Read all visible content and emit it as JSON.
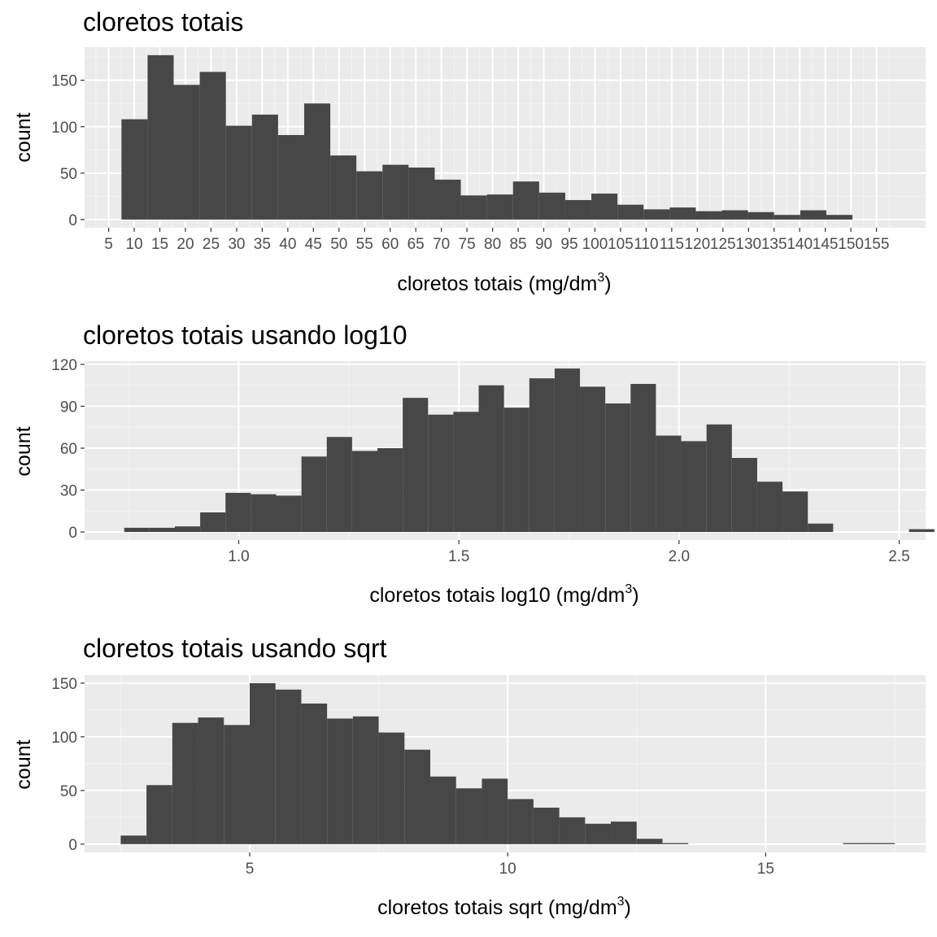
{
  "colors": {
    "panel": "#ebebeb",
    "grid_major": "#ffffff",
    "grid_minor": "#f5f5f5",
    "bar": "#474747",
    "tick_text": "#4d4d4d",
    "text": "#000000"
  },
  "chart_data": [
    {
      "type": "bar",
      "title": "cloretos totais",
      "xlabel": "cloretos totais (mg/dm",
      "xlabel_sup": "3",
      "xlabel_end": ")",
      "ylabel": "count",
      "xlim": [
        0.3,
        164.6
      ],
      "ylim": [
        -8.8,
        185.6
      ],
      "xticks": [
        5,
        10,
        15,
        20,
        25,
        30,
        35,
        40,
        45,
        50,
        55,
        60,
        65,
        70,
        75,
        80,
        85,
        90,
        95,
        100,
        105,
        110,
        115,
        120,
        125,
        130,
        135,
        140,
        145,
        150,
        155
      ],
      "yticks": [
        0,
        50,
        100,
        150
      ],
      "bins_start": 7.5,
      "bin_width": 5.1,
      "values": [
        108,
        177,
        145,
        159,
        101,
        113,
        91,
        125,
        69,
        52,
        59,
        56,
        43,
        26,
        27,
        41,
        29,
        21,
        28,
        16,
        11,
        13,
        9,
        10,
        8,
        5,
        10,
        5
      ]
    },
    {
      "type": "bar",
      "title": "cloretos totais usando log10",
      "xlabel": "cloretos totais log10 (mg/dm",
      "xlabel_sup": "3",
      "xlabel_end": ")",
      "ylabel": "count",
      "xlim": [
        0.65,
        2.56
      ],
      "ylim": [
        -5.8,
        122.3
      ],
      "xticks": [
        1.0,
        1.5,
        2.0,
        2.5
      ],
      "xtick_labels": [
        "1.0",
        "1.5",
        "2.0",
        "2.5"
      ],
      "yticks": [
        0,
        30,
        60,
        90,
        120
      ],
      "bins_start": 0.74,
      "bin_width": 0.0575,
      "values": [
        3,
        3,
        4,
        14,
        28,
        27,
        26,
        54,
        68,
        58,
        60,
        96,
        84,
        86,
        105,
        89,
        110,
        117,
        104,
        92,
        106,
        69,
        65,
        77,
        53,
        36,
        29,
        6,
        0,
        0,
        0,
        2
      ]
    },
    {
      "type": "bar",
      "title": "cloretos totais usando sqrt",
      "xlabel": "cloretos totais sqrt (mg/dm",
      "xlabel_sup": "3",
      "xlabel_end": ")",
      "ylabel": "count",
      "xlim": [
        1.8,
        18.1
      ],
      "ylim": [
        -7.7,
        157.5
      ],
      "xticks": [
        5,
        10,
        15
      ],
      "xtick_labels": [
        "5",
        "10",
        "15"
      ],
      "yticks": [
        0,
        50,
        100,
        150
      ],
      "bins_start": 2.5,
      "bin_width": 0.5,
      "values": [
        8,
        55,
        113,
        118,
        111,
        150,
        144,
        131,
        117,
        119,
        104,
        88,
        63,
        52,
        61,
        42,
        34,
        25,
        19,
        21,
        5,
        1,
        0,
        0,
        0,
        0,
        0,
        0,
        1,
        1
      ]
    }
  ]
}
